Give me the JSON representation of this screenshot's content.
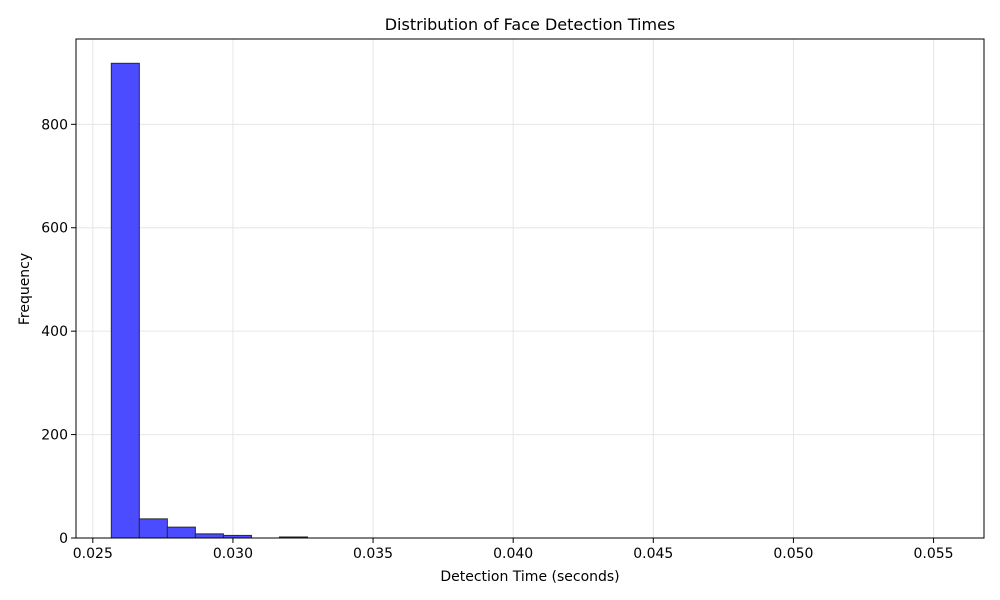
{
  "chart_data": {
    "type": "bar",
    "title": "Distribution of Face Detection Times",
    "xlabel": "Detection Time (seconds)",
    "ylabel": "Frequency",
    "xlim": [
      0.0244,
      0.0568
    ],
    "ylim": [
      0,
      965
    ],
    "grid": true,
    "xticks": [
      0.025,
      0.03,
      0.035,
      0.04,
      0.045,
      0.05,
      0.055
    ],
    "xtick_labels": [
      "0.025",
      "0.030",
      "0.035",
      "0.040",
      "0.045",
      "0.050",
      "0.055"
    ],
    "yticks": [
      0,
      200,
      400,
      600,
      800
    ],
    "ytick_labels": [
      "0",
      "200",
      "400",
      "600",
      "800"
    ],
    "bin_edges": [
      0.02566,
      0.02666,
      0.02766,
      0.02866,
      0.02966,
      0.03066,
      0.03166,
      0.03266
    ],
    "values": [
      918,
      37,
      21,
      8,
      5,
      0,
      2
    ],
    "bar_color": "#4b4bff",
    "edge_color": "#2a2a2a"
  }
}
